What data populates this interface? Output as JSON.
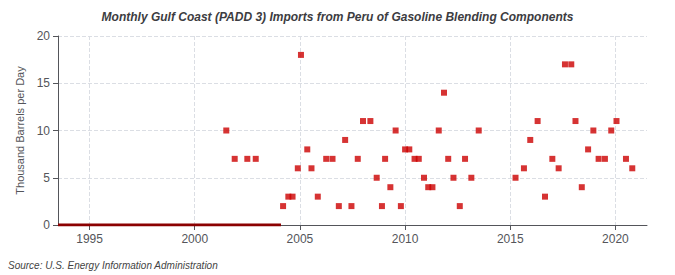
{
  "chart_data": {
    "type": "scatter",
    "title": "Monthly Gulf Coast (PADD 3) Imports from Peru of Gasoline Blending Components",
    "ylabel": "Thousand Barrels per Day",
    "annotation": "Source: U.S. Energy Information Administration",
    "xlim": [
      1993.5,
      2021.5
    ],
    "xticks": [
      1995,
      2000,
      2005,
      2010,
      2015,
      2020
    ],
    "ylim": [
      0,
      20
    ],
    "yticks": [
      0,
      5,
      10,
      15,
      20
    ],
    "grid": true,
    "series": [
      {
        "type": "line",
        "color": "#8B0000",
        "line_style": "solid",
        "x": [
          1993.5,
          2004.1
        ],
        "values": [
          0,
          0
        ]
      },
      {
        "type": "scatter",
        "color": "#cc0000",
        "marker": "square",
        "x": [
          2001.5,
          2001.9,
          2002.5,
          2002.9,
          2004.2,
          2004.45,
          2004.65,
          2004.9,
          2005.05,
          2005.35,
          2005.55,
          2005.85,
          2006.25,
          2006.55,
          2006.85,
          2007.15,
          2007.45,
          2007.75,
          2008.0,
          2008.35,
          2008.65,
          2008.9,
          2009.05,
          2009.3,
          2009.55,
          2009.8,
          2010.0,
          2010.2,
          2010.45,
          2010.65,
          2010.9,
          2011.1,
          2011.3,
          2011.6,
          2011.85,
          2012.05,
          2012.3,
          2012.6,
          2012.85,
          2013.15,
          2013.5,
          2015.25,
          2015.65,
          2015.95,
          2016.3,
          2016.65,
          2017.0,
          2017.3,
          2017.6,
          2017.9,
          2018.1,
          2018.4,
          2018.7,
          2018.95,
          2019.2,
          2019.5,
          2019.8,
          2020.05,
          2020.5,
          2020.8
        ],
        "values": [
          10,
          7,
          7,
          7,
          2,
          3,
          3,
          6,
          18,
          8,
          6,
          3,
          7,
          7,
          2,
          9,
          2,
          7,
          11,
          11,
          5,
          2,
          7,
          4,
          10,
          2,
          8,
          8,
          7,
          7,
          5,
          4,
          4,
          10,
          14,
          7,
          5,
          2,
          7,
          5,
          10,
          5,
          6,
          9,
          11,
          3,
          7,
          6,
          17,
          17,
          11,
          4,
          8,
          10,
          7,
          7,
          10,
          11,
          7,
          6
        ]
      }
    ]
  }
}
